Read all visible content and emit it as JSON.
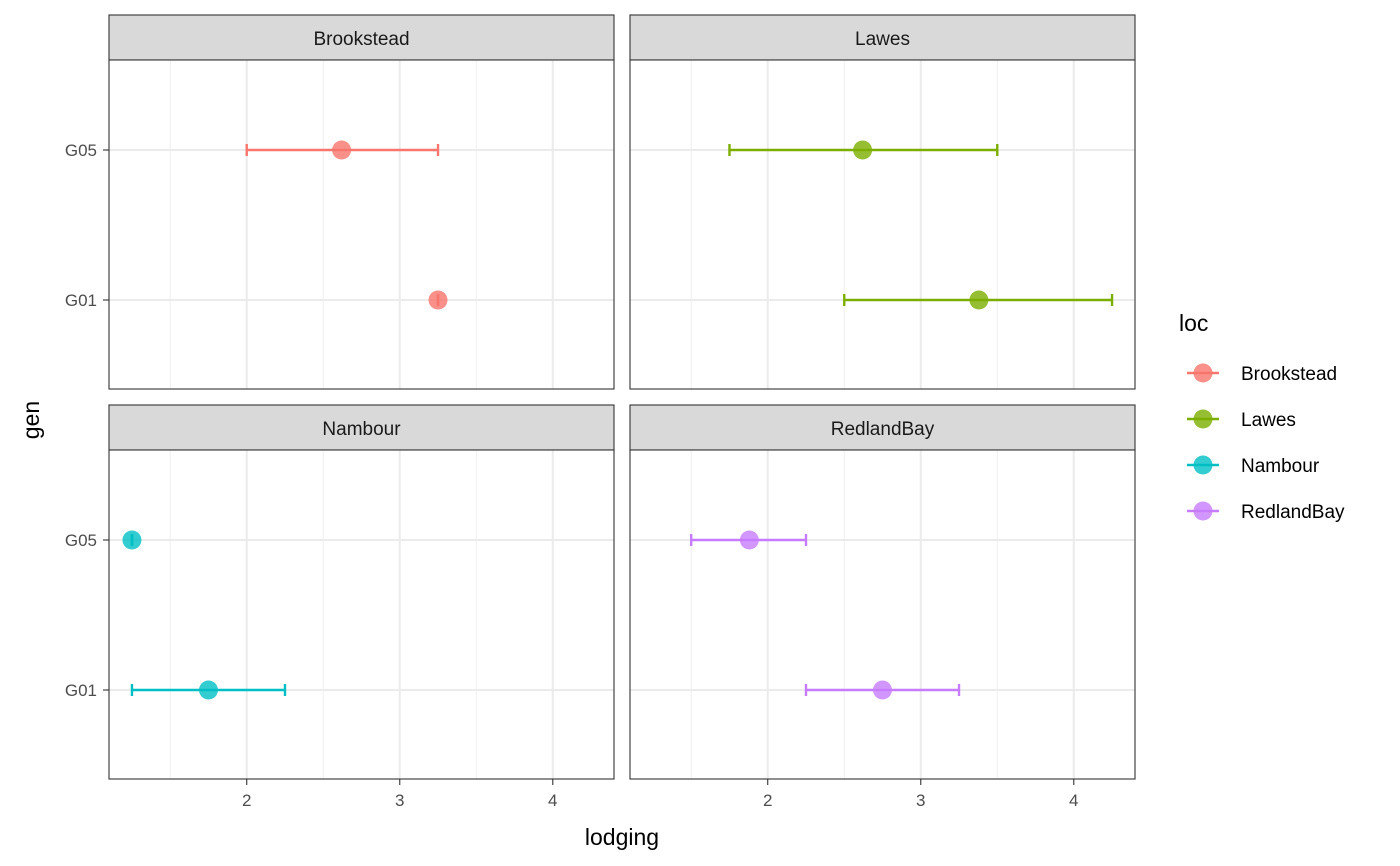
{
  "chart_data": {
    "type": "scatter",
    "xlabel": "lodging",
    "ylabel": "gen",
    "xlim": [
      1.1,
      4.4
    ],
    "x_ticks": [
      "2",
      "3",
      "4"
    ],
    "x_tick_values": [
      2,
      3,
      4
    ],
    "y_categories": [
      "G05",
      "G01"
    ],
    "grid": true,
    "legend": {
      "title": "loc",
      "position": "right",
      "items": [
        {
          "label": "Brookstead",
          "color": "#F8766D"
        },
        {
          "label": "Lawes",
          "color": "#7CAE00"
        },
        {
          "label": "Nambour",
          "color": "#00BFC4"
        },
        {
          "label": "RedlandBay",
          "color": "#C77CFF"
        }
      ]
    },
    "panels": [
      {
        "title": "Brookstead",
        "color": "#F8766D",
        "points": [
          {
            "gen": "G05",
            "x": 2.62,
            "xmin": 2.0,
            "xmax": 3.25
          },
          {
            "gen": "G01",
            "x": 3.25,
            "xmin": 3.25,
            "xmax": 3.25
          }
        ]
      },
      {
        "title": "Lawes",
        "color": "#7CAE00",
        "points": [
          {
            "gen": "G05",
            "x": 2.62,
            "xmin": 1.75,
            "xmax": 3.5
          },
          {
            "gen": "G01",
            "x": 3.38,
            "xmin": 2.5,
            "xmax": 4.25
          }
        ]
      },
      {
        "title": "Nambour",
        "color": "#00BFC4",
        "points": [
          {
            "gen": "G05",
            "x": 1.25,
            "xmin": 1.25,
            "xmax": 1.25
          },
          {
            "gen": "G01",
            "x": 1.75,
            "xmin": 1.25,
            "xmax": 2.25
          }
        ]
      },
      {
        "title": "RedlandBay",
        "color": "#C77CFF",
        "points": [
          {
            "gen": "G05",
            "x": 1.88,
            "xmin": 1.5,
            "xmax": 2.25
          },
          {
            "gen": "G01",
            "x": 2.75,
            "xmin": 2.25,
            "xmax": 3.25
          }
        ]
      }
    ]
  }
}
